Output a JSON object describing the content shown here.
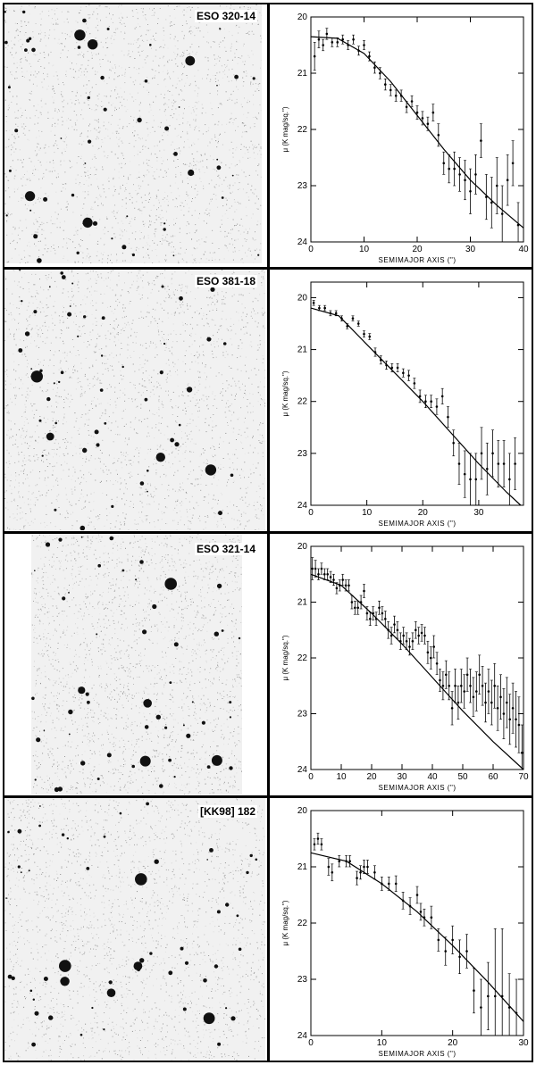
{
  "figure": {
    "panels": [
      {
        "name": "ESO 320-14"
      },
      {
        "name": "ESO 381-18"
      },
      {
        "name": "ESO 321-14"
      },
      {
        "name": "[KK98] 182"
      }
    ]
  },
  "chart_data": [
    {
      "type": "scatter",
      "title": "",
      "xlabel": "SEMIMAJOR AXIS (\")",
      "ylabel": "μ (K mag/sq.\")",
      "xlim": [
        0,
        40
      ],
      "ylim": [
        20,
        24
      ],
      "y_inverted": true,
      "xticks": [
        0,
        10,
        20,
        30,
        40
      ],
      "yticks": [
        20,
        21,
        22,
        23,
        24
      ],
      "points": [
        [
          0.7,
          20.7,
          0.25
        ],
        [
          1.5,
          20.4,
          0.15
        ],
        [
          2.3,
          20.5,
          0.1
        ],
        [
          3,
          20.3,
          0.1
        ],
        [
          4,
          20.45,
          0.08
        ],
        [
          5,
          20.45,
          0.08
        ],
        [
          6,
          20.4,
          0.08
        ],
        [
          7,
          20.5,
          0.08
        ],
        [
          8,
          20.4,
          0.08
        ],
        [
          9,
          20.6,
          0.08
        ],
        [
          10,
          20.5,
          0.08
        ],
        [
          11,
          20.7,
          0.08
        ],
        [
          12,
          20.9,
          0.1
        ],
        [
          13,
          21.0,
          0.1
        ],
        [
          14,
          21.2,
          0.1
        ],
        [
          15,
          21.3,
          0.1
        ],
        [
          16,
          21.4,
          0.1
        ],
        [
          17,
          21.4,
          0.1
        ],
        [
          18,
          21.6,
          0.1
        ],
        [
          19,
          21.5,
          0.1
        ],
        [
          20,
          21.7,
          0.12
        ],
        [
          21,
          21.8,
          0.12
        ],
        [
          22,
          21.9,
          0.12
        ],
        [
          23,
          21.7,
          0.15
        ],
        [
          24,
          22.1,
          0.2
        ],
        [
          25,
          22.6,
          0.2
        ],
        [
          26,
          22.7,
          0.25
        ],
        [
          27,
          22.7,
          0.3
        ],
        [
          28,
          22.8,
          0.3
        ],
        [
          29,
          22.9,
          0.35
        ],
        [
          30,
          23.1,
          0.4
        ],
        [
          31,
          22.8,
          0.35
        ],
        [
          32,
          22.2,
          0.3
        ],
        [
          33,
          23.2,
          0.4
        ],
        [
          34,
          23.3,
          0.45
        ],
        [
          35,
          23.0,
          0.5
        ],
        [
          36,
          23.5,
          0.5
        ],
        [
          37,
          22.9,
          0.45
        ],
        [
          38,
          22.6,
          0.4
        ],
        [
          39,
          23.7,
          0.4
        ]
      ],
      "fit": [
        [
          0,
          20.35
        ],
        [
          5,
          20.38
        ],
        [
          10,
          20.65
        ],
        [
          15,
          21.15
        ],
        [
          20,
          21.75
        ],
        [
          25,
          22.35
        ],
        [
          30,
          22.9
        ],
        [
          35,
          23.35
        ],
        [
          40,
          23.75
        ]
      ]
    },
    {
      "type": "scatter",
      "title": "",
      "xlabel": "SEMIMAJOR AXIS (\")",
      "ylabel": "μ (K mag/sq.\")",
      "xlim": [
        0,
        38
      ],
      "ylim": [
        19.7,
        24
      ],
      "y_inverted": true,
      "xticks": [
        0,
        10,
        20,
        30
      ],
      "yticks": [
        20,
        21,
        22,
        23,
        24
      ],
      "points": [
        [
          0.5,
          20.1,
          0.05
        ],
        [
          1.5,
          20.2,
          0.05
        ],
        [
          2.5,
          20.2,
          0.05
        ],
        [
          3.5,
          20.3,
          0.05
        ],
        [
          4.5,
          20.3,
          0.05
        ],
        [
          5.5,
          20.4,
          0.05
        ],
        [
          6.5,
          20.55,
          0.05
        ],
        [
          7.5,
          20.4,
          0.05
        ],
        [
          8.5,
          20.5,
          0.05
        ],
        [
          9.5,
          20.7,
          0.06
        ],
        [
          10.5,
          20.75,
          0.06
        ],
        [
          11.5,
          21.05,
          0.08
        ],
        [
          12.5,
          21.2,
          0.08
        ],
        [
          13.5,
          21.3,
          0.08
        ],
        [
          14.5,
          21.35,
          0.08
        ],
        [
          15.5,
          21.35,
          0.08
        ],
        [
          16.5,
          21.45,
          0.08
        ],
        [
          17.5,
          21.5,
          0.1
        ],
        [
          18.5,
          21.65,
          0.1
        ],
        [
          19.5,
          21.9,
          0.12
        ],
        [
          20.5,
          22.0,
          0.12
        ],
        [
          21.5,
          22.0,
          0.12
        ],
        [
          22.5,
          22.1,
          0.15
        ],
        [
          23.5,
          21.9,
          0.15
        ],
        [
          24.5,
          22.3,
          0.2
        ],
        [
          25.5,
          22.8,
          0.25
        ],
        [
          26.5,
          23.2,
          0.4
        ],
        [
          27.5,
          23.4,
          0.45
        ],
        [
          28.5,
          23.5,
          0.5
        ],
        [
          29.5,
          23.5,
          0.5
        ],
        [
          30.5,
          23.0,
          0.5
        ],
        [
          31.5,
          23.3,
          0.5
        ],
        [
          32.5,
          23.0,
          0.45
        ],
        [
          33.5,
          23.2,
          0.45
        ],
        [
          34.5,
          23.2,
          0.45
        ],
        [
          35.5,
          23.5,
          0.5
        ],
        [
          36.5,
          23.2,
          0.5
        ]
      ],
      "fit": [
        [
          0,
          20.2
        ],
        [
          5,
          20.35
        ],
        [
          10,
          20.9
        ],
        [
          15,
          21.45
        ],
        [
          20,
          22.0
        ],
        [
          25,
          22.6
        ],
        [
          30,
          23.2
        ],
        [
          35,
          23.75
        ],
        [
          37.5,
          24.0
        ]
      ]
    },
    {
      "type": "scatter",
      "title": "",
      "xlabel": "SEMIMAJOR AXIS (\")",
      "ylabel": "μ (K mag/sq.\")",
      "xlim": [
        0,
        70
      ],
      "ylim": [
        20,
        24
      ],
      "y_inverted": true,
      "xticks": [
        0,
        10,
        20,
        30,
        40,
        50,
        60,
        70
      ],
      "yticks": [
        20,
        21,
        22,
        23,
        24
      ],
      "points": [
        [
          0.5,
          20.4,
          0.2
        ],
        [
          1.5,
          20.4,
          0.15
        ],
        [
          2.5,
          20.5,
          0.1
        ],
        [
          3.5,
          20.4,
          0.1
        ],
        [
          4.5,
          20.5,
          0.1
        ],
        [
          5.5,
          20.5,
          0.1
        ],
        [
          6.5,
          20.55,
          0.1
        ],
        [
          7.5,
          20.6,
          0.1
        ],
        [
          8.5,
          20.75,
          0.1
        ],
        [
          9.5,
          20.7,
          0.1
        ],
        [
          10.5,
          20.6,
          0.1
        ],
        [
          11.5,
          20.7,
          0.1
        ],
        [
          12.5,
          20.7,
          0.1
        ],
        [
          13.5,
          21.0,
          0.12
        ],
        [
          14.5,
          21.1,
          0.12
        ],
        [
          15.5,
          21.1,
          0.12
        ],
        [
          16.5,
          21.0,
          0.12
        ],
        [
          17.5,
          20.8,
          0.12
        ],
        [
          18.5,
          21.2,
          0.12
        ],
        [
          19.5,
          21.3,
          0.12
        ],
        [
          20.5,
          21.2,
          0.12
        ],
        [
          21.5,
          21.3,
          0.12
        ],
        [
          22.5,
          21.1,
          0.12
        ],
        [
          23.5,
          21.2,
          0.12
        ],
        [
          24.5,
          21.3,
          0.14
        ],
        [
          25.5,
          21.5,
          0.15
        ],
        [
          26.5,
          21.6,
          0.15
        ],
        [
          27.5,
          21.4,
          0.15
        ],
        [
          28.5,
          21.5,
          0.15
        ],
        [
          29.5,
          21.7,
          0.15
        ],
        [
          30.5,
          21.6,
          0.15
        ],
        [
          31.5,
          21.7,
          0.15
        ],
        [
          32.5,
          21.8,
          0.15
        ],
        [
          33.5,
          21.7,
          0.15
        ],
        [
          34.5,
          21.5,
          0.15
        ],
        [
          35.5,
          21.6,
          0.15
        ],
        [
          36.5,
          21.55,
          0.15
        ],
        [
          37.5,
          21.6,
          0.15
        ],
        [
          38.5,
          21.9,
          0.2
        ],
        [
          39.5,
          22.0,
          0.2
        ],
        [
          40.5,
          21.8,
          0.2
        ],
        [
          41.5,
          22.1,
          0.2
        ],
        [
          42.5,
          22.4,
          0.2
        ],
        [
          43.5,
          22.5,
          0.25
        ],
        [
          44.5,
          22.3,
          0.25
        ],
        [
          45.5,
          22.5,
          0.25
        ],
        [
          46.5,
          22.9,
          0.3
        ],
        [
          47.5,
          22.5,
          0.3
        ],
        [
          48.5,
          22.8,
          0.3
        ],
        [
          49.5,
          22.5,
          0.3
        ],
        [
          50.5,
          22.6,
          0.3
        ],
        [
          51.5,
          22.3,
          0.3
        ],
        [
          52.5,
          22.5,
          0.3
        ],
        [
          53.5,
          22.7,
          0.35
        ],
        [
          54.5,
          22.6,
          0.35
        ],
        [
          55.5,
          22.3,
          0.35
        ],
        [
          56.5,
          22.5,
          0.35
        ],
        [
          57.5,
          22.8,
          0.35
        ],
        [
          58.5,
          22.6,
          0.4
        ],
        [
          59.5,
          22.8,
          0.4
        ],
        [
          60.5,
          22.5,
          0.4
        ],
        [
          61.5,
          22.9,
          0.4
        ],
        [
          62.5,
          22.7,
          0.4
        ],
        [
          63.5,
          23.0,
          0.45
        ],
        [
          64.5,
          22.8,
          0.45
        ],
        [
          65.5,
          23.1,
          0.45
        ],
        [
          66.5,
          22.9,
          0.45
        ],
        [
          67.5,
          23.1,
          0.5
        ],
        [
          68.5,
          23.2,
          0.5
        ],
        [
          69.5,
          23.7,
          0.5
        ]
      ],
      "fit": [
        [
          0,
          20.5
        ],
        [
          10,
          20.7
        ],
        [
          20,
          21.2
        ],
        [
          30,
          21.75
        ],
        [
          40,
          22.35
        ],
        [
          50,
          22.95
        ],
        [
          60,
          23.5
        ],
        [
          70,
          24.0
        ]
      ]
    },
    {
      "type": "scatter",
      "title": "",
      "xlabel": "SEMIMAJOR AXIS (\")",
      "ylabel": "μ (K mag/sq.\")",
      "xlim": [
        0,
        30
      ],
      "ylim": [
        20,
        24
      ],
      "y_inverted": true,
      "xticks": [
        0,
        10,
        20,
        30
      ],
      "yticks": [
        20,
        21,
        22,
        23,
        24
      ],
      "points": [
        [
          0.5,
          20.6,
          0.1
        ],
        [
          1,
          20.5,
          0.1
        ],
        [
          1.5,
          20.6,
          0.1
        ],
        [
          2.5,
          21.0,
          0.15
        ],
        [
          3,
          21.1,
          0.15
        ],
        [
          4,
          20.9,
          0.1
        ],
        [
          5,
          20.9,
          0.1
        ],
        [
          5.5,
          20.9,
          0.1
        ],
        [
          6.5,
          21.2,
          0.12
        ],
        [
          7,
          21.1,
          0.12
        ],
        [
          7.5,
          21.0,
          0.12
        ],
        [
          8,
          21.0,
          0.12
        ],
        [
          9,
          21.1,
          0.12
        ],
        [
          10,
          21.3,
          0.12
        ],
        [
          11,
          21.3,
          0.12
        ],
        [
          12,
          21.3,
          0.14
        ],
        [
          13,
          21.6,
          0.15
        ],
        [
          14,
          21.7,
          0.15
        ],
        [
          15,
          21.5,
          0.15
        ],
        [
          15.5,
          21.8,
          0.15
        ],
        [
          16,
          21.9,
          0.15
        ],
        [
          17,
          21.9,
          0.2
        ],
        [
          18,
          22.3,
          0.2
        ],
        [
          19,
          22.5,
          0.25
        ],
        [
          20,
          22.3,
          0.25
        ],
        [
          21,
          22.6,
          0.3
        ],
        [
          22,
          22.5,
          0.3
        ],
        [
          23,
          23.2,
          0.4
        ],
        [
          24,
          23.5,
          0.5
        ],
        [
          25,
          23.3,
          0.6
        ],
        [
          26,
          23.3,
          1.2
        ],
        [
          27,
          23.3,
          1.2
        ],
        [
          28,
          23.5,
          0.6
        ],
        [
          29,
          23.6,
          0.6
        ]
      ],
      "fit": [
        [
          0,
          20.75
        ],
        [
          5,
          20.9
        ],
        [
          10,
          21.3
        ],
        [
          15,
          21.8
        ],
        [
          20,
          22.4
        ],
        [
          25,
          23.05
        ],
        [
          30,
          23.75
        ]
      ]
    }
  ]
}
